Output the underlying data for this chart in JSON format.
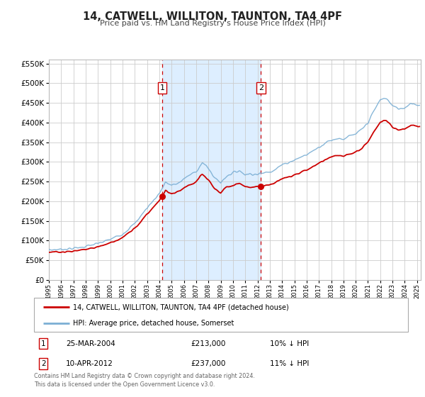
{
  "title": "14, CATWELL, WILLITON, TAUNTON, TA4 4PF",
  "subtitle": "Price paid vs. HM Land Registry's House Price Index (HPI)",
  "legend_label_red": "14, CATWELL, WILLITON, TAUNTON, TA4 4PF (detached house)",
  "legend_label_blue": "HPI: Average price, detached house, Somerset",
  "footer_line1": "Contains HM Land Registry data © Crown copyright and database right 2024.",
  "footer_line2": "This data is licensed under the Open Government Licence v3.0.",
  "sale1_label": "1",
  "sale1_date": "25-MAR-2004",
  "sale1_price": "£213,000",
  "sale1_hpi": "10% ↓ HPI",
  "sale1_year": 2004.23,
  "sale1_value": 213000,
  "sale2_label": "2",
  "sale2_date": "10-APR-2012",
  "sale2_price": "£237,000",
  "sale2_hpi": "11% ↓ HPI",
  "sale2_year": 2012.27,
  "sale2_value": 237000,
  "ylim": [
    0,
    560000
  ],
  "xlim_start": 1995.0,
  "xlim_end": 2025.3,
  "red_color": "#cc0000",
  "blue_color": "#7BAFD4",
  "shade_color": "#ddeeff",
  "grid_color": "#cccccc",
  "background_color": "#ffffff"
}
